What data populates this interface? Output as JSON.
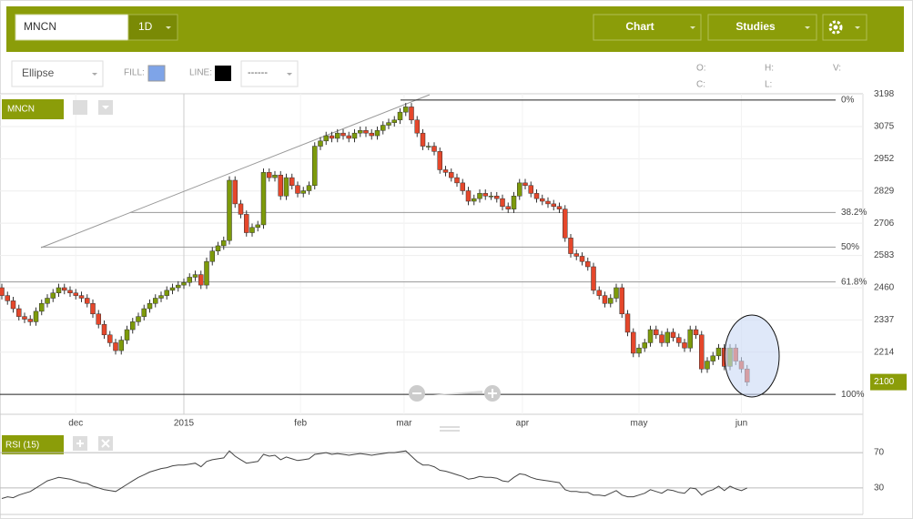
{
  "toolbar": {
    "symbol": "MNCN",
    "interval": "1D",
    "chart_button": "Chart",
    "studies_button": "Studies",
    "tool": "Ellipse",
    "fill_label": "FILL:",
    "line_label": "LINE:",
    "line_style": "------",
    "ohlc_labels": [
      "O:",
      "H:",
      "V:",
      "C:",
      "L:"
    ]
  },
  "chart_data": [
    {
      "type": "candlestick",
      "title": "MNCN",
      "up_color": "#7d9a0a",
      "down_color": "#e5472b",
      "grid": true,
      "xlim": [
        0,
        132
      ],
      "xticks": [
        {
          "value": 13,
          "label": "dec"
        },
        {
          "value": 32,
          "label": "2015"
        },
        {
          "value": 52.5,
          "label": "feb"
        },
        {
          "value": 70.7,
          "label": "mar"
        },
        {
          "value": 91.5,
          "label": "apr"
        },
        {
          "value": 112,
          "label": "may"
        },
        {
          "value": 130,
          "label": "jun"
        }
      ],
      "ylim": [
        1977,
        3200
      ],
      "yticks": [
        3198,
        3075,
        2952,
        2829,
        2706,
        2583,
        2460,
        2337,
        2214
      ],
      "last_price": 2100,
      "fib_levels": [
        {
          "value": 3176,
          "label": "0%"
        },
        {
          "value": 2747,
          "label": "38.2%"
        },
        {
          "value": 2615,
          "label": "50%"
        },
        {
          "value": 2482,
          "label": "61.8%"
        },
        {
          "value": 2053,
          "label": "100%"
        }
      ],
      "ohlc": [
        [
          2460,
          2475,
          2415,
          2430
        ],
        [
          2430,
          2445,
          2395,
          2410
        ],
        [
          2410,
          2425,
          2365,
          2380
        ],
        [
          2380,
          2395,
          2335,
          2350
        ],
        [
          2350,
          2365,
          2325,
          2340
        ],
        [
          2340,
          2355,
          2315,
          2330
        ],
        [
          2330,
          2385,
          2315,
          2370
        ],
        [
          2370,
          2415,
          2355,
          2400
        ],
        [
          2400,
          2435,
          2385,
          2420
        ],
        [
          2420,
          2455,
          2405,
          2440
        ],
        [
          2440,
          2475,
          2425,
          2460
        ],
        [
          2460,
          2475,
          2435,
          2450
        ],
        [
          2450,
          2465,
          2425,
          2440
        ],
        [
          2440,
          2455,
          2415,
          2430
        ],
        [
          2430,
          2445,
          2405,
          2420
        ],
        [
          2420,
          2435,
          2385,
          2400
        ],
        [
          2400,
          2415,
          2345,
          2360
        ],
        [
          2360,
          2375,
          2305,
          2320
        ],
        [
          2320,
          2335,
          2265,
          2280
        ],
        [
          2280,
          2295,
          2235,
          2250
        ],
        [
          2250,
          2265,
          2205,
          2220
        ],
        [
          2220,
          2275,
          2205,
          2260
        ],
        [
          2260,
          2315,
          2245,
          2300
        ],
        [
          2300,
          2345,
          2285,
          2330
        ],
        [
          2330,
          2365,
          2315,
          2350
        ],
        [
          2350,
          2395,
          2335,
          2380
        ],
        [
          2380,
          2415,
          2365,
          2400
        ],
        [
          2400,
          2435,
          2385,
          2420
        ],
        [
          2420,
          2445,
          2405,
          2430
        ],
        [
          2430,
          2465,
          2415,
          2450
        ],
        [
          2450,
          2475,
          2435,
          2460
        ],
        [
          2460,
          2485,
          2445,
          2470
        ],
        [
          2470,
          2495,
          2455,
          2480
        ],
        [
          2480,
          2515,
          2465,
          2500
        ],
        [
          2500,
          2525,
          2485,
          2510
        ],
        [
          2510,
          2525,
          2455,
          2470
        ],
        [
          2470,
          2575,
          2455,
          2560
        ],
        [
          2560,
          2615,
          2545,
          2600
        ],
        [
          2600,
          2635,
          2585,
          2620
        ],
        [
          2620,
          2655,
          2605,
          2640
        ],
        [
          2640,
          2885,
          2625,
          2870
        ],
        [
          2870,
          2885,
          2765,
          2780
        ],
        [
          2780,
          2795,
          2725,
          2740
        ],
        [
          2740,
          2755,
          2655,
          2670
        ],
        [
          2670,
          2705,
          2655,
          2690
        ],
        [
          2690,
          2715,
          2675,
          2700
        ],
        [
          2700,
          2915,
          2685,
          2900
        ],
        [
          2900,
          2915,
          2865,
          2880
        ],
        [
          2880,
          2905,
          2865,
          2890
        ],
        [
          2890,
          2905,
          2795,
          2810
        ],
        [
          2810,
          2895,
          2795,
          2880
        ],
        [
          2880,
          2895,
          2835,
          2850
        ],
        [
          2850,
          2865,
          2805,
          2820
        ],
        [
          2820,
          2845,
          2805,
          2830
        ],
        [
          2830,
          2865,
          2815,
          2850
        ],
        [
          2850,
          3015,
          2835,
          3000
        ],
        [
          3000,
          3035,
          2985,
          3020
        ],
        [
          3020,
          3055,
          3005,
          3040
        ],
        [
          3040,
          3055,
          3015,
          3030
        ],
        [
          3030,
          3065,
          3015,
          3050
        ],
        [
          3050,
          3065,
          3025,
          3040
        ],
        [
          3040,
          3055,
          3015,
          3030
        ],
        [
          3030,
          3065,
          3015,
          3050
        ],
        [
          3050,
          3075,
          3035,
          3060
        ],
        [
          3060,
          3075,
          3035,
          3050
        ],
        [
          3050,
          3065,
          3025,
          3040
        ],
        [
          3040,
          3075,
          3025,
          3060
        ],
        [
          3060,
          3095,
          3045,
          3080
        ],
        [
          3080,
          3105,
          3065,
          3090
        ],
        [
          3090,
          3115,
          3075,
          3100
        ],
        [
          3100,
          3145,
          3085,
          3130
        ],
        [
          3130,
          3165,
          3115,
          3150
        ],
        [
          3150,
          3165,
          3085,
          3100
        ],
        [
          3100,
          3115,
          3035,
          3050
        ],
        [
          3050,
          3065,
          2985,
          3000
        ],
        [
          3000,
          3015,
          2985,
          3000
        ],
        [
          3000,
          3015,
          2965,
          2980
        ],
        [
          2980,
          2995,
          2895,
          2910
        ],
        [
          2910,
          2925,
          2885,
          2900
        ],
        [
          2900,
          2915,
          2865,
          2880
        ],
        [
          2880,
          2895,
          2845,
          2860
        ],
        [
          2860,
          2875,
          2815,
          2830
        ],
        [
          2830,
          2845,
          2775,
          2790
        ],
        [
          2790,
          2815,
          2775,
          2800
        ],
        [
          2800,
          2835,
          2785,
          2820
        ],
        [
          2820,
          2835,
          2795,
          2810
        ],
        [
          2810,
          2825,
          2795,
          2810
        ],
        [
          2810,
          2825,
          2785,
          2800
        ],
        [
          2800,
          2815,
          2755,
          2770
        ],
        [
          2770,
          2785,
          2745,
          2760
        ],
        [
          2760,
          2825,
          2745,
          2810
        ],
        [
          2810,
          2875,
          2795,
          2860
        ],
        [
          2860,
          2875,
          2835,
          2850
        ],
        [
          2850,
          2865,
          2805,
          2820
        ],
        [
          2820,
          2835,
          2785,
          2800
        ],
        [
          2800,
          2815,
          2775,
          2790
        ],
        [
          2790,
          2805,
          2765,
          2780
        ],
        [
          2780,
          2795,
          2755,
          2770
        ],
        [
          2770,
          2785,
          2745,
          2760
        ],
        [
          2760,
          2775,
          2635,
          2650
        ],
        [
          2650,
          2665,
          2575,
          2590
        ],
        [
          2590,
          2605,
          2565,
          2580
        ],
        [
          2580,
          2595,
          2545,
          2560
        ],
        [
          2560,
          2575,
          2525,
          2540
        ],
        [
          2540,
          2555,
          2435,
          2450
        ],
        [
          2450,
          2465,
          2415,
          2430
        ],
        [
          2430,
          2445,
          2385,
          2400
        ],
        [
          2400,
          2435,
          2385,
          2420
        ],
        [
          2420,
          2475,
          2405,
          2460
        ],
        [
          2460,
          2475,
          2345,
          2360
        ],
        [
          2360,
          2375,
          2275,
          2290
        ],
        [
          2290,
          2305,
          2195,
          2210
        ],
        [
          2210,
          2245,
          2195,
          2230
        ],
        [
          2230,
          2265,
          2215,
          2250
        ],
        [
          2250,
          2315,
          2235,
          2300
        ],
        [
          2300,
          2315,
          2265,
          2280
        ],
        [
          2280,
          2295,
          2235,
          2250
        ],
        [
          2250,
          2305,
          2235,
          2290
        ],
        [
          2290,
          2305,
          2255,
          2270
        ],
        [
          2270,
          2285,
          2235,
          2250
        ],
        [
          2250,
          2265,
          2215,
          2230
        ],
        [
          2230,
          2315,
          2215,
          2300
        ],
        [
          2300,
          2315,
          2265,
          2280
        ],
        [
          2280,
          2295,
          2135,
          2150
        ],
        [
          2150,
          2195,
          2135,
          2180
        ],
        [
          2180,
          2215,
          2165,
          2200
        ],
        [
          2200,
          2245,
          2185,
          2230
        ],
        [
          2230,
          2245,
          2145,
          2160
        ],
        [
          2160,
          2245,
          2145,
          2230
        ],
        [
          2230,
          2245,
          2165,
          2180
        ],
        [
          2180,
          2195,
          2135,
          2150
        ],
        [
          2150,
          2165,
          2085,
          2100
        ]
      ]
    },
    {
      "type": "line",
      "title": "RSI (15)",
      "color": "#444444",
      "xlim": [
        0,
        132
      ],
      "ylim": [
        0,
        100
      ],
      "yticks": [
        30,
        70
      ],
      "values": [
        18,
        20,
        19,
        22,
        24,
        26,
        30,
        34,
        38,
        40,
        42,
        41,
        40,
        38,
        36,
        35,
        32,
        30,
        28,
        27,
        26,
        30,
        34,
        38,
        42,
        45,
        48,
        50,
        52,
        53,
        55,
        56,
        56,
        57,
        58,
        54,
        60,
        62,
        63,
        64,
        72,
        66,
        62,
        58,
        59,
        60,
        68,
        66,
        67,
        62,
        65,
        63,
        61,
        62,
        63,
        68,
        69,
        70,
        68,
        69,
        68,
        67,
        68,
        69,
        68,
        67,
        68,
        69,
        70,
        70,
        71,
        72,
        66,
        60,
        56,
        56,
        54,
        50,
        49,
        47,
        45,
        43,
        40,
        41,
        43,
        42,
        42,
        41,
        38,
        37,
        42,
        46,
        45,
        42,
        40,
        39,
        38,
        37,
        36,
        28,
        26,
        26,
        25,
        25,
        22,
        22,
        21,
        24,
        27,
        22,
        20,
        20,
        22,
        24,
        28,
        26,
        24,
        28,
        27,
        25,
        24,
        30,
        29,
        22,
        26,
        28,
        32,
        27,
        32,
        29,
        27,
        30
      ]
    }
  ]
}
